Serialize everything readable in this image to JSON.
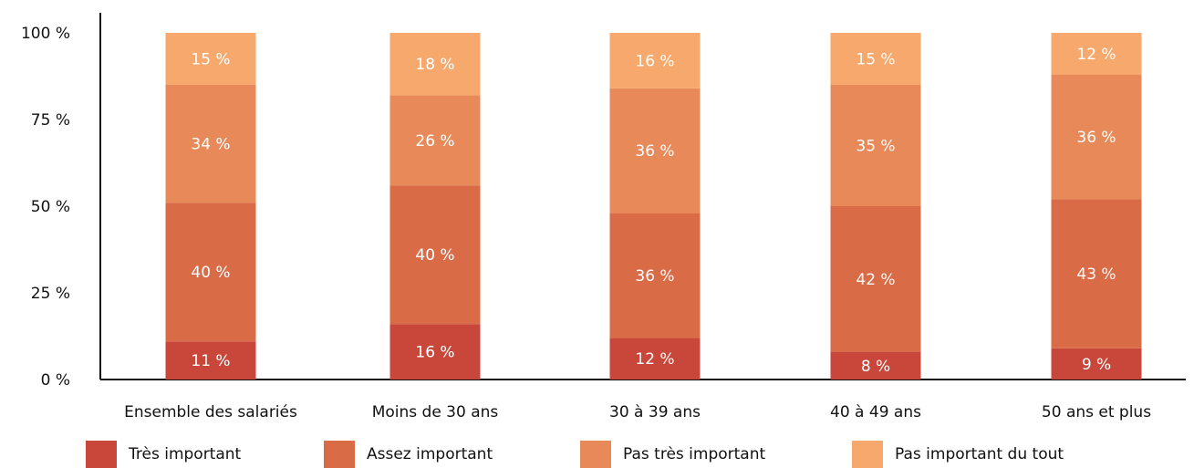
{
  "chart_data": {
    "type": "bar",
    "stacked": true,
    "title": "",
    "xlabel": "",
    "ylabel": "",
    "ylim": [
      0,
      100
    ],
    "yticks": [
      "0 %",
      "25 %",
      "50 %",
      "75 %",
      "100 %"
    ],
    "categories": [
      "Ensemble des salariés",
      "Moins de 30 ans",
      "30 à 39 ans",
      "40 à 49 ans",
      "50 ans et plus"
    ],
    "series": [
      {
        "name": "Très important",
        "color": "#c9473a",
        "values": [
          11,
          16,
          12,
          8,
          9
        ],
        "labels": [
          "11 %",
          "16 %",
          "12 %",
          "8 %",
          "9 %"
        ]
      },
      {
        "name": "Assez important",
        "color": "#d96b47",
        "values": [
          40,
          40,
          36,
          42,
          43
        ],
        "labels": [
          "40 %",
          "40 %",
          "36 %",
          "42 %",
          "43 %"
        ]
      },
      {
        "name": "Pas très important",
        "color": "#e8895a",
        "values": [
          34,
          26,
          36,
          35,
          36
        ],
        "labels": [
          "34 %",
          "26 %",
          "36 %",
          "35 %",
          "36 %"
        ]
      },
      {
        "name": "Pas important du tout",
        "color": "#f7a86c",
        "values": [
          15,
          18,
          16,
          15,
          12
        ],
        "labels": [
          "15 %",
          "18 %",
          "16 %",
          "15 %",
          "12 %"
        ]
      }
    ],
    "grid": false,
    "legend_position": "bottom"
  }
}
